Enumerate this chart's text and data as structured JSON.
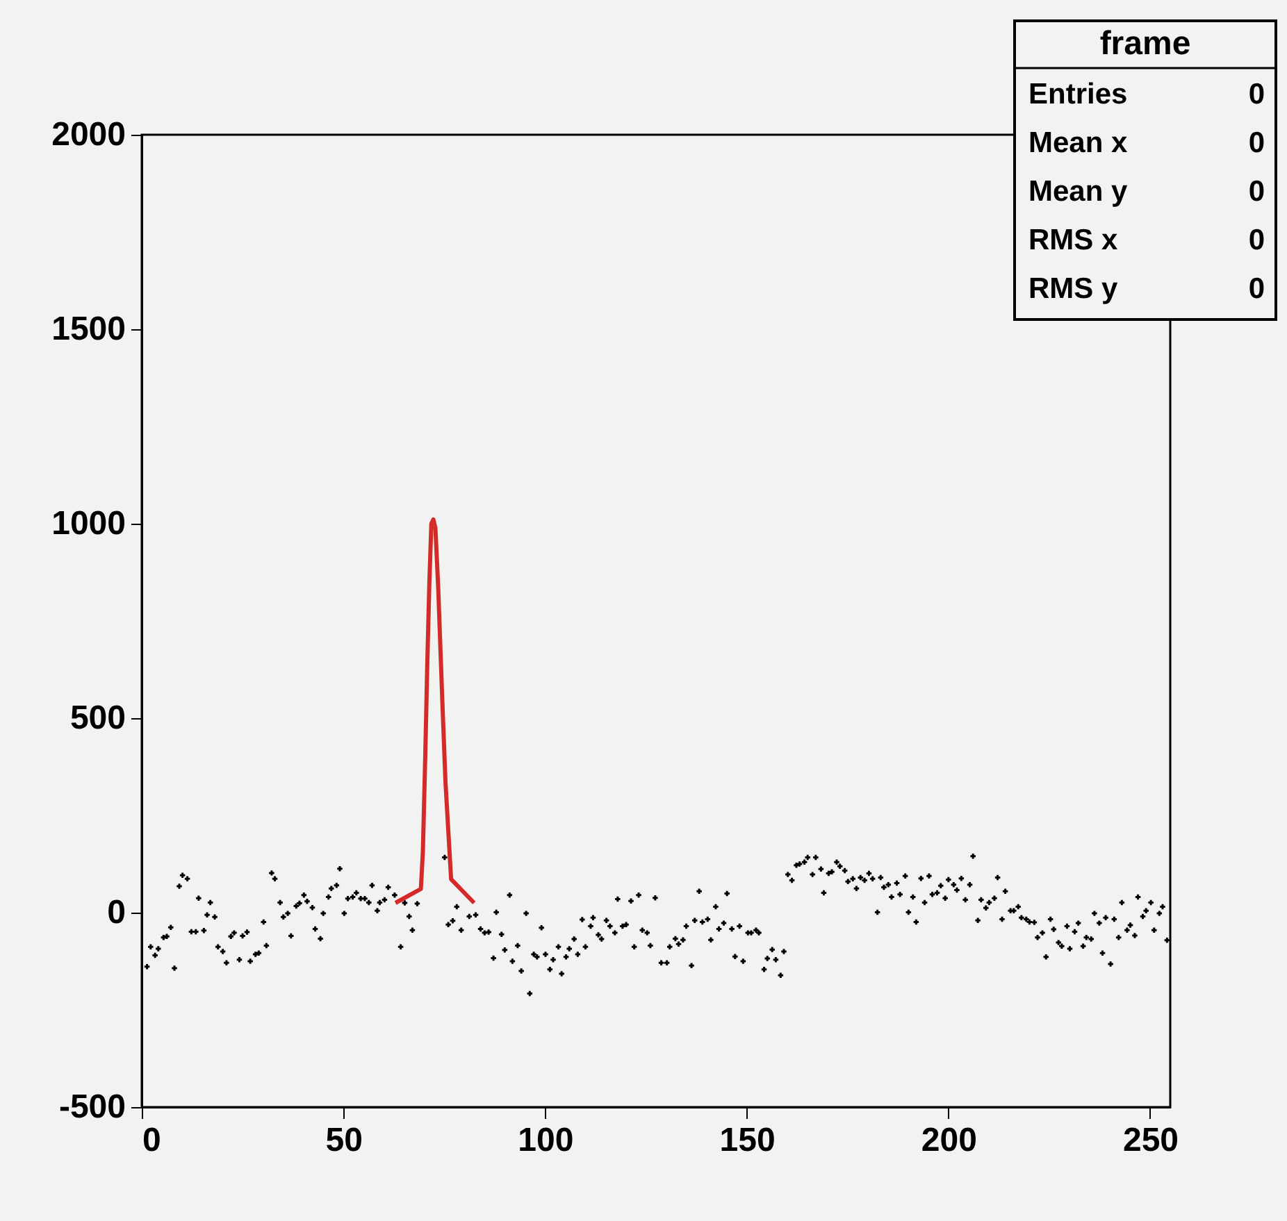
{
  "chart_data": {
    "type": "scatter",
    "xlim": [
      0,
      255
    ],
    "xticks": [
      0,
      50,
      100,
      150,
      200,
      250
    ],
    "ylim": [
      -500,
      2000
    ],
    "yticks": [
      -500,
      0,
      500,
      1000,
      1500,
      2000
    ],
    "grid": false,
    "annotations": [
      "frame",
      "Entries 0",
      "Mean x 0",
      "Mean y 0",
      "RMS x 0",
      "RMS y 0"
    ],
    "series": [
      {
        "marker": "cross",
        "color": "#000000",
        "x": [
          1.3,
          2.2,
          3.3,
          4.1,
          5.4,
          6.2,
          7.2,
          8.1,
          9.3,
          10.1,
          11.3,
          12.3,
          13.4,
          14.1,
          15.4,
          16.2,
          17,
          18.1,
          18.9,
          20.1,
          21,
          22.1,
          22.9,
          24.2,
          25,
          26.1,
          26.9,
          28.2,
          29,
          30.2,
          30.9,
          32.2,
          33,
          34.3,
          35.1,
          36.2,
          37,
          38.3,
          39.1,
          40.2,
          41,
          42.3,
          43,
          44.3,
          45,
          46.3,
          47,
          48.3,
          49.1,
          50.2,
          51.1,
          52.3,
          53.2,
          54.3,
          55.3,
          56.3,
          57.1,
          58.4,
          59,
          60.2,
          61.1,
          62.7,
          64.2,
          65.2,
          66.3,
          67.1,
          68.3,
          75.1,
          76,
          77.1,
          78.1,
          79.2,
          81.2,
          82.8,
          84,
          85,
          86,
          87.2,
          87.9,
          89.2,
          90,
          91.2,
          91.9,
          93.2,
          94.1,
          95.3,
          96.2,
          97.2,
          98,
          99.1,
          100.1,
          101.2,
          102,
          103.3,
          104.1,
          105.2,
          106,
          107.2,
          108.1,
          109.2,
          110,
          111.3,
          111.9,
          113.2,
          114,
          115.2,
          116.1,
          117.3,
          118,
          119.2,
          120.1,
          121.3,
          122.1,
          123.2,
          124.1,
          125.3,
          126.1,
          127.3,
          128.8,
          130.2,
          130.9,
          132.3,
          133.1,
          134.2,
          135,
          136.3,
          137.1,
          138.2,
          139,
          140.3,
          141.1,
          142.3,
          143.1,
          144.3,
          145.1,
          146.3,
          147.1,
          148.2,
          149.1,
          150.3,
          151.1,
          152.3,
          153,
          154.3,
          155.1,
          156.3,
          157.2,
          158.4,
          159.2,
          160.2,
          161.2,
          162.3,
          163.1,
          164.3,
          165.1,
          166.3,
          167.1,
          168.4,
          169.1,
          170.3,
          171.1,
          172.3,
          173.1,
          174.3,
          175.1,
          176.3,
          177.2,
          178.2,
          179.2,
          180.3,
          181.2,
          182.4,
          183.2,
          184,
          185.1,
          185.9,
          187.2,
          188,
          189.3,
          190.1,
          191.2,
          192,
          193.2,
          194.1,
          195.2,
          196,
          197.2,
          198.1,
          199.2,
          200,
          201.3,
          202.1,
          203.2,
          204.2,
          205.3,
          206.1,
          207.3,
          208.1,
          209.3,
          210.1,
          211.4,
          212.2,
          213.3,
          214.1,
          215.4,
          216.2,
          217.3,
          218.1,
          219.3,
          220.1,
          221.3,
          222.1,
          223.3,
          224.2,
          225.3,
          226.1,
          227.3,
          228.1,
          229.4,
          230.1,
          231.3,
          232.2,
          233.4,
          234.2,
          235.4,
          236.2,
          237.4,
          238.2,
          239,
          240.2,
          241.1,
          242.2,
          243,
          244.3,
          245.1,
          246.2,
          247,
          248.2,
          249,
          250.2,
          251,
          252.3,
          253.1,
          254.2
        ],
        "values": [
          -139,
          -88,
          -110,
          -93,
          -64,
          -61,
          -38,
          -143,
          68,
          96,
          87,
          -49,
          -49,
          37,
          -46,
          -6,
          26,
          -11,
          -88,
          -100,
          -129,
          -61,
          -52,
          -121,
          -60,
          -50,
          -125,
          -107,
          -104,
          -24,
          -85,
          102,
          87,
          26,
          -11,
          -2,
          -60,
          17,
          24,
          45,
          29,
          13,
          -42,
          -67,
          -2,
          40,
          62,
          70,
          113,
          -2,
          36,
          40,
          51,
          36,
          36,
          26,
          70,
          5,
          26,
          33,
          65,
          45,
          -88,
          25,
          -10,
          -45,
          23,
          142,
          -31,
          -21,
          15,
          -45,
          -10,
          -6,
          -42,
          -52,
          -50,
          -117,
          1,
          -56,
          -96,
          45,
          -125,
          -85,
          -150,
          -2,
          -208,
          -107,
          -114,
          -39,
          -107,
          -146,
          -121,
          -88,
          -157,
          -114,
          -93,
          -68,
          -107,
          -18,
          -88,
          -35,
          -13,
          -57,
          -68,
          -20,
          -35,
          -52,
          35,
          -35,
          -31,
          30,
          -88,
          45,
          -45,
          -52,
          -85,
          38,
          -129,
          -129,
          -88,
          -67,
          -81,
          -70,
          -35,
          -136,
          -20,
          55,
          -24,
          -17,
          -70,
          15,
          -42,
          -27,
          49,
          -42,
          -113,
          -35,
          -125,
          -52,
          -52,
          -45,
          -52,
          -146,
          -118,
          -95,
          -121,
          -161,
          -100,
          98,
          83,
          122,
          125,
          130,
          142,
          98,
          142,
          112,
          51,
          101,
          105,
          130,
          119,
          108,
          80,
          87,
          62,
          90,
          83,
          101,
          87,
          1,
          90,
          65,
          72,
          40,
          76,
          47,
          94,
          1,
          40,
          -24,
          88,
          26,
          94,
          47,
          51,
          69,
          37,
          85,
          72,
          58,
          88,
          33,
          72,
          145,
          -20,
          33,
          12,
          26,
          37,
          90,
          -17,
          55,
          5,
          5,
          15,
          -13,
          -17,
          -24,
          -25,
          -64,
          -52,
          -114,
          -17,
          -43,
          -77,
          -86,
          -35,
          -93,
          -49,
          -27,
          -86,
          -64,
          -68,
          -2,
          -27,
          -104,
          -13,
          -132,
          -17,
          -64,
          26,
          -45,
          -32,
          -59,
          40,
          -10,
          5,
          26,
          -45,
          -2,
          15,
          -71
        ]
      },
      {
        "type": "line",
        "marker": "none",
        "line_style": "solid",
        "color": "#d42a2a",
        "x": [
          62.9,
          69.2,
          69.7,
          70.3,
          70.8,
          71.3,
          71.8,
          72.3,
          72.8,
          73.5,
          74.5,
          75.3,
          76.1,
          76.7,
          82.4
        ],
        "values": [
          25,
          61,
          157,
          407,
          643,
          846,
          1000,
          1011,
          989,
          836,
          550,
          336,
          193,
          86,
          25
        ]
      }
    ]
  }
}
